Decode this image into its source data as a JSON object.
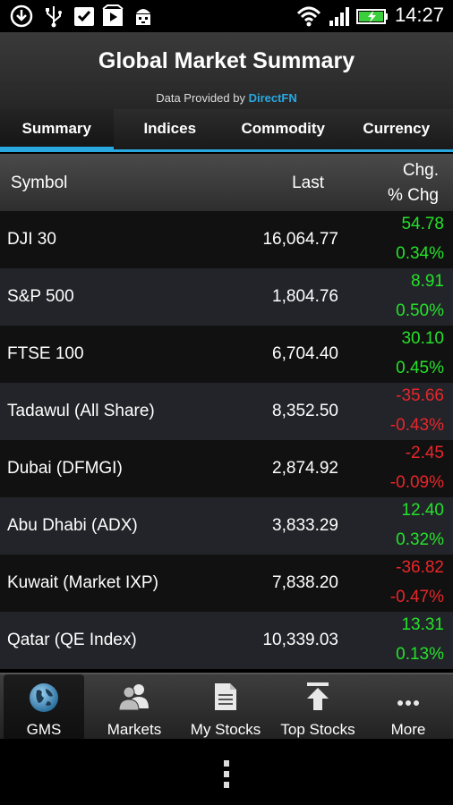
{
  "status_bar": {
    "time": "14:27",
    "left_icons": [
      "download-icon",
      "usb-icon",
      "clipboard-check-icon",
      "play-store-icon",
      "android-debug-icon"
    ],
    "right_icons": [
      "wifi-icon",
      "signal-icon",
      "battery-charging-icon"
    ]
  },
  "header": {
    "title": "Global Market Summary",
    "provider_prefix": "Data Provided by ",
    "provider_name": "DirectFN"
  },
  "tabs": [
    {
      "label": "Summary",
      "active": true
    },
    {
      "label": "Indices",
      "active": false
    },
    {
      "label": "Commodity",
      "active": false
    },
    {
      "label": "Currency",
      "active": false
    }
  ],
  "table": {
    "columns": {
      "symbol": "Symbol",
      "last": "Last",
      "chg": "Chg.",
      "pct_chg": "% Chg"
    },
    "rows": [
      {
        "symbol": "DJI 30",
        "last": "16,064.77",
        "chg": "54.78",
        "pct": "0.34%",
        "dir": "pos"
      },
      {
        "symbol": "S&P 500",
        "last": "1,804.76",
        "chg": "8.91",
        "pct": "0.50%",
        "dir": "pos"
      },
      {
        "symbol": "FTSE 100",
        "last": "6,704.40",
        "chg": "30.10",
        "pct": "0.45%",
        "dir": "pos"
      },
      {
        "symbol": "Tadawul (All Share)",
        "last": "8,352.50",
        "chg": "-35.66",
        "pct": "-0.43%",
        "dir": "neg"
      },
      {
        "symbol": "Dubai (DFMGI)",
        "last": "2,874.92",
        "chg": "-2.45",
        "pct": "-0.09%",
        "dir": "neg"
      },
      {
        "symbol": "Abu Dhabi (ADX)",
        "last": "3,833.29",
        "chg": "12.40",
        "pct": "0.32%",
        "dir": "pos"
      },
      {
        "symbol": "Kuwait (Market IXP)",
        "last": "7,838.20",
        "chg": "-36.82",
        "pct": "-0.47%",
        "dir": "neg"
      },
      {
        "symbol": "Qatar (QE Index)",
        "last": "10,339.03",
        "chg": "13.31",
        "pct": "0.13%",
        "dir": "pos"
      }
    ]
  },
  "bottom_nav": [
    {
      "label": "GMS",
      "icon": "globe-icon",
      "active": true
    },
    {
      "label": "Markets",
      "icon": "people-icon",
      "active": false
    },
    {
      "label": "My Stocks",
      "icon": "document-icon",
      "active": false
    },
    {
      "label": "Top Stocks",
      "icon": "arrow-up-icon",
      "active": false
    },
    {
      "label": "More",
      "icon": "more-dots-icon",
      "active": false
    }
  ],
  "colors": {
    "accent": "#29a8e0",
    "positive": "#25e12a",
    "negative": "#e8262a"
  }
}
